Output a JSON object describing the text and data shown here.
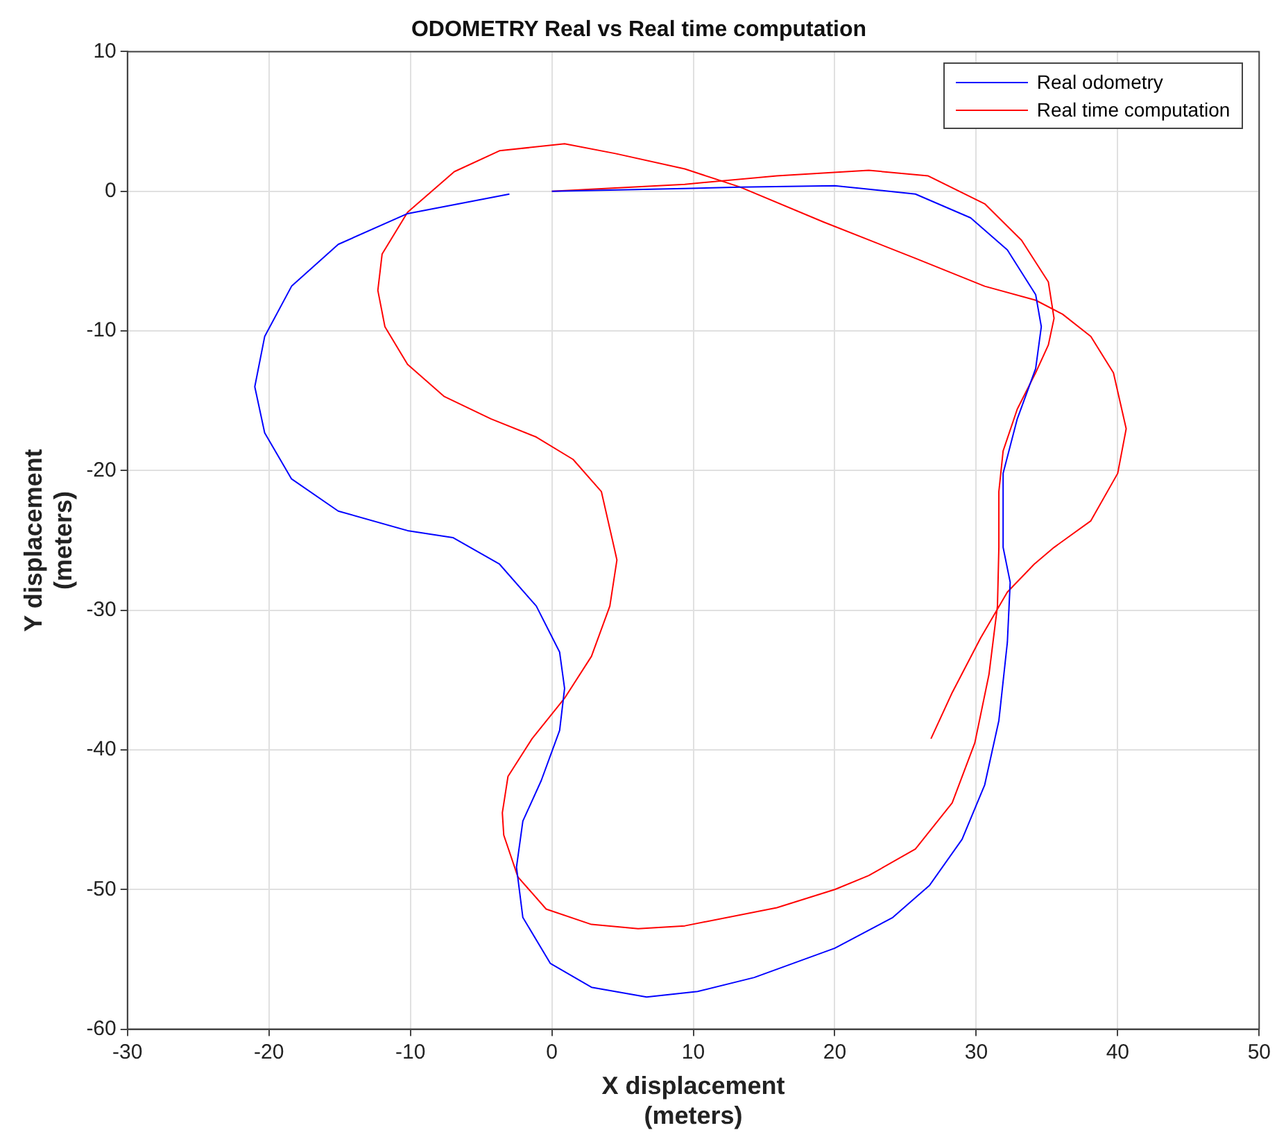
{
  "chart_data": {
    "type": "line",
    "title": "ODOMETRY Real vs Real time computation",
    "xlabel": "X displacement\n(meters)",
    "ylabel": "Y displacement\n(meters)",
    "xlim": [
      -30,
      50
    ],
    "xticks": [
      -30,
      -20,
      -10,
      0,
      10,
      20,
      30,
      40,
      50
    ],
    "ylim": [
      -60,
      10
    ],
    "yticks": [
      -60,
      -50,
      -40,
      -30,
      -20,
      -10,
      0,
      10
    ],
    "grid": true,
    "legend": "top right",
    "marker": "none",
    "line_style": "solid",
    "series": [
      {
        "name": "Real odometry",
        "color": "#0000ff",
        "x": [
          0,
          9.4,
          13.3,
          20,
          25.7,
          29.6,
          32.2,
          34.2,
          34.6,
          34.2,
          32.9,
          31.9,
          31.9,
          32.4,
          32.2,
          31.6,
          30.6,
          29,
          26.7,
          24.1,
          20,
          14.3,
          10.3,
          6.7,
          2.8,
          -0.1,
          -2.05,
          -2.5,
          -2.05,
          -0.75,
          0.55,
          0.9,
          0.55,
          -1.1,
          -3.7,
          -7,
          -10.2,
          -15.1,
          -18.4,
          -20.3,
          -21,
          -20.3,
          -18.4,
          -15.1,
          -10.2,
          -3
        ],
        "values": [
          0,
          0.2,
          0.3,
          0.4,
          -0.2,
          -1.9,
          -4.2,
          -7.4,
          -9.7,
          -12.7,
          -16.3,
          -20.2,
          -25.5,
          -28,
          -32.3,
          -37.9,
          -42.5,
          -46.4,
          -49.7,
          -52,
          -54.2,
          -56.3,
          -57.3,
          -57.7,
          -57,
          -55.3,
          -52,
          -48.4,
          -45.1,
          -42.2,
          -38.6,
          -35.6,
          -33,
          -29.7,
          -26.7,
          -24.8,
          -24.3,
          -22.9,
          -20.6,
          -17.3,
          -14,
          -10.4,
          -6.8,
          -3.8,
          -1.6,
          -0.2
        ]
      },
      {
        "name": "Real time computation",
        "color": "#ff0000",
        "x": [
          0,
          9.4,
          15.9,
          22.4,
          26.6,
          30.6,
          33.2,
          35.1,
          35.5,
          35.1,
          34.2,
          32.9,
          31.9,
          31.6,
          31.6,
          31.5,
          30.9,
          29.9,
          28.3,
          25.7,
          22.4,
          20,
          15.9,
          9.4,
          6.1,
          2.8,
          -0.4,
          -2.4,
          -3.4,
          -3.5,
          -3.1,
          -1.4,
          0.9,
          2.8,
          4.1,
          4.6,
          4.4,
          3.5,
          1.5,
          -1.1,
          -4.3,
          -7.6,
          -10.2,
          -11.8,
          -12.3,
          -12,
          -10.2,
          -6.9,
          -3.7,
          0.9,
          4.5,
          9.4,
          13.3,
          19.2,
          25.7,
          30.6,
          34.2,
          36.1,
          38.1,
          39.7,
          40.6,
          40,
          38.1,
          35.5,
          34.1,
          32.2,
          30.3,
          28.3,
          26.8
        ],
        "values": [
          0,
          0.5,
          1.1,
          1.5,
          1.1,
          -0.9,
          -3.5,
          -6.5,
          -9.1,
          -11,
          -13,
          -15.6,
          -18.6,
          -21.5,
          -25.5,
          -29.7,
          -34.6,
          -39.5,
          -43.8,
          -47.1,
          -49,
          -50,
          -51.3,
          -52.6,
          -52.8,
          -52.5,
          -51.4,
          -49.1,
          -46.1,
          -44.5,
          -41.9,
          -39.2,
          -36.3,
          -33.3,
          -29.7,
          -26.4,
          -25.5,
          -21.5,
          -19.2,
          -17.6,
          -16.3,
          -14.7,
          -12.4,
          -9.7,
          -7.1,
          -4.5,
          -1.5,
          1.4,
          2.9,
          3.4,
          2.7,
          1.6,
          0.3,
          -2.2,
          -4.8,
          -6.8,
          -7.8,
          -8.8,
          -10.4,
          -13,
          -17,
          -20.2,
          -23.6,
          -25.5,
          -26.7,
          -28.7,
          -32,
          -35.9,
          -39.2
        ]
      }
    ]
  }
}
